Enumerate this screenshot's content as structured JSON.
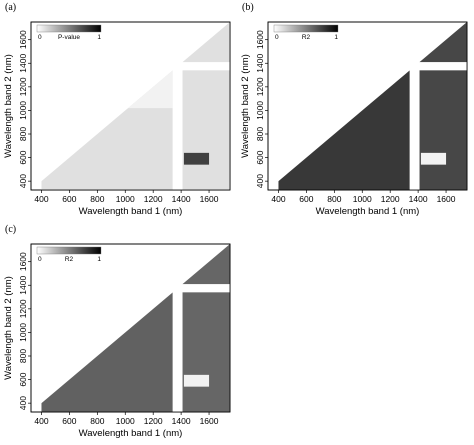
{
  "chart_data": [
    {
      "panel_label": "(a)",
      "type": "heatmap",
      "xlabel": "Wavelength band 1 (nm)",
      "ylabel": "Wavelength band 2 (nm)",
      "x_ticks": [
        "400",
        "600",
        "800",
        "1000",
        "1200",
        "1400",
        "1600"
      ],
      "y_ticks": [
        "400",
        "600",
        "800",
        "1000",
        "1200",
        "1400",
        "1600"
      ],
      "xlim": [
        325,
        1750
      ],
      "ylim": [
        325,
        1750
      ],
      "colorbar": {
        "label": "P-value",
        "min": "0",
        "max": "1"
      },
      "lower_triangle": true,
      "gaps_nm": [
        [
          1340,
          1410
        ]
      ],
      "regions": [
        {
          "x": [
            400,
            1340
          ],
          "y": [
            325,
            1340
          ],
          "level": 0.12
        },
        {
          "x": [
            1410,
            1750
          ],
          "y": [
            325,
            1750
          ],
          "level": 0.12
        },
        {
          "x": [
            1000,
            1340
          ],
          "y": [
            1020,
            1340
          ],
          "level": 0.05
        },
        {
          "x": [
            1420,
            1600
          ],
          "y": [
            540,
            640
          ],
          "level": 0.75
        }
      ]
    },
    {
      "panel_label": "(b)",
      "type": "heatmap",
      "xlabel": "Wavelength band 1 (nm)",
      "ylabel": "Wavelength band 2 (nm)",
      "x_ticks": [
        "400",
        "600",
        "800",
        "1000",
        "1200",
        "1400",
        "1600"
      ],
      "y_ticks": [
        "400",
        "600",
        "800",
        "1000",
        "1200",
        "1400",
        "1600"
      ],
      "xlim": [
        325,
        1750
      ],
      "ylim": [
        325,
        1750
      ],
      "colorbar": {
        "label": "R2",
        "min": "0",
        "max": "1"
      },
      "lower_triangle": true,
      "gaps_nm": [
        [
          1340,
          1410
        ]
      ],
      "regions": [
        {
          "x": [
            400,
            1340
          ],
          "y": [
            325,
            1340
          ],
          "level": 0.78
        },
        {
          "x": [
            1410,
            1750
          ],
          "y": [
            325,
            1750
          ],
          "level": 0.72
        },
        {
          "x": [
            1420,
            1600
          ],
          "y": [
            540,
            640
          ],
          "level": 0.05
        }
      ]
    },
    {
      "panel_label": "(c)",
      "type": "heatmap",
      "xlabel": "Wavelength band 1 (nm)",
      "ylabel": "Wavelength band 2 (nm)",
      "x_ticks": [
        "400",
        "600",
        "800",
        "1000",
        "1200",
        "1400",
        "1600"
      ],
      "y_ticks": [
        "400",
        "600",
        "800",
        "1000",
        "1200",
        "1400",
        "1600"
      ],
      "xlim": [
        325,
        1750
      ],
      "ylim": [
        325,
        1750
      ],
      "colorbar": {
        "label": "R2",
        "min": "0",
        "max": "1"
      },
      "lower_triangle": true,
      "gaps_nm": [
        [
          1340,
          1410
        ]
      ],
      "regions": [
        {
          "x": [
            400,
            1340
          ],
          "y": [
            325,
            1340
          ],
          "level": 0.62
        },
        {
          "x": [
            1410,
            1750
          ],
          "y": [
            325,
            1750
          ],
          "level": 0.6
        },
        {
          "x": [
            1420,
            1600
          ],
          "y": [
            540,
            640
          ],
          "level": 0.05
        }
      ]
    }
  ]
}
